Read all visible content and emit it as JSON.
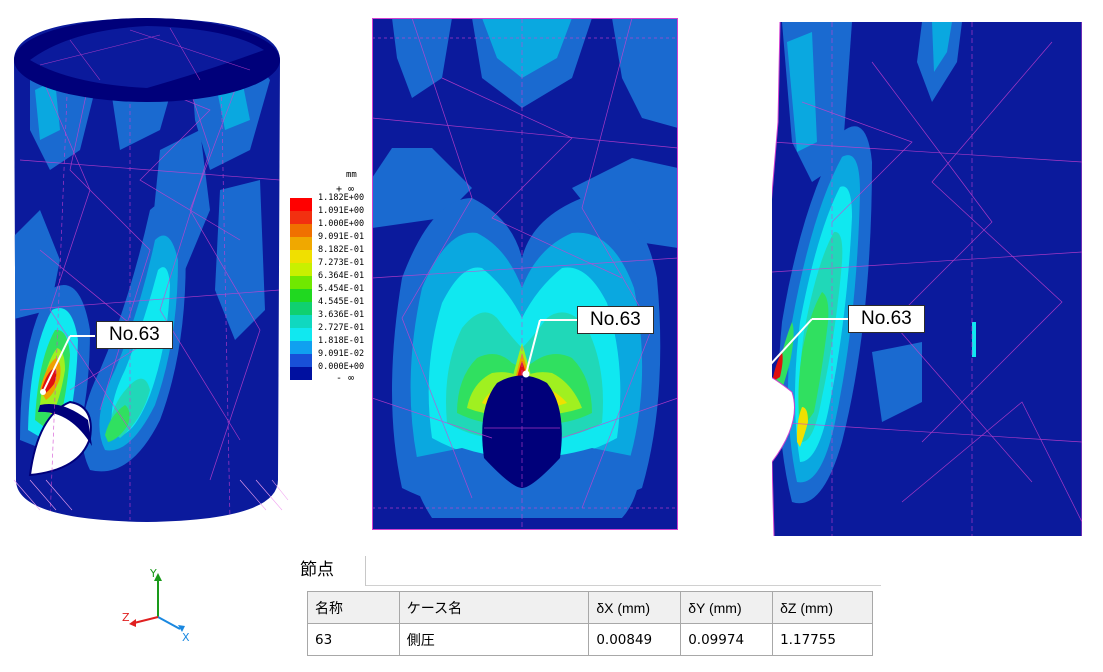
{
  "callouts": {
    "view1": "No.63",
    "view2": "No.63",
    "view3": "No.63"
  },
  "colors": {
    "navy": "#00007a",
    "dark_blue": "#1030b0",
    "medium_blue": "#1a6ad0",
    "cyan_blue": "#0aa8e0",
    "cyan": "#10e8f0",
    "teal": "#20d8b8",
    "green": "#30e060",
    "lime": "#a0f020",
    "yellow": "#f0f020",
    "orange": "#f0a000",
    "red": "#e01010",
    "mesh": "#d040d0"
  },
  "legend": {
    "unit": "mm",
    "plus": "+ ∞",
    "minus": "- ∞",
    "entries": [
      {
        "label": "1.182E+00",
        "color": "#ff0000"
      },
      {
        "label": "1.091E+00",
        "color": "#f23010"
      },
      {
        "label": "1.000E+00",
        "color": "#f07000"
      },
      {
        "label": "9.091E-01",
        "color": "#f0a800"
      },
      {
        "label": "8.182E-01",
        "color": "#f0e000"
      },
      {
        "label": "7.273E-01",
        "color": "#c8f000"
      },
      {
        "label": "6.364E-01",
        "color": "#70e800"
      },
      {
        "label": "5.454E-01",
        "color": "#20d820"
      },
      {
        "label": "4.545E-01",
        "color": "#10d070"
      },
      {
        "label": "3.636E-01",
        "color": "#10d8c0"
      },
      {
        "label": "2.727E-01",
        "color": "#10e8f0"
      },
      {
        "label": "1.818E-01",
        "color": "#10a0f0"
      },
      {
        "label": "9.091E-02",
        "color": "#1850d8"
      },
      {
        "label": "0.000E+00",
        "color": "#0010a0"
      }
    ]
  },
  "axes": {
    "x": "X",
    "y": "Y",
    "z": "Z"
  },
  "panel": {
    "tab_label": "節点",
    "columns": [
      "名称",
      "ケース名",
      "δX (mm)",
      "δY (mm)",
      "δZ (mm)"
    ],
    "rows": [
      {
        "name": "63",
        "case": "側圧",
        "dx": "0.00849",
        "dy": "0.09974",
        "dz": "1.17755"
      }
    ]
  }
}
